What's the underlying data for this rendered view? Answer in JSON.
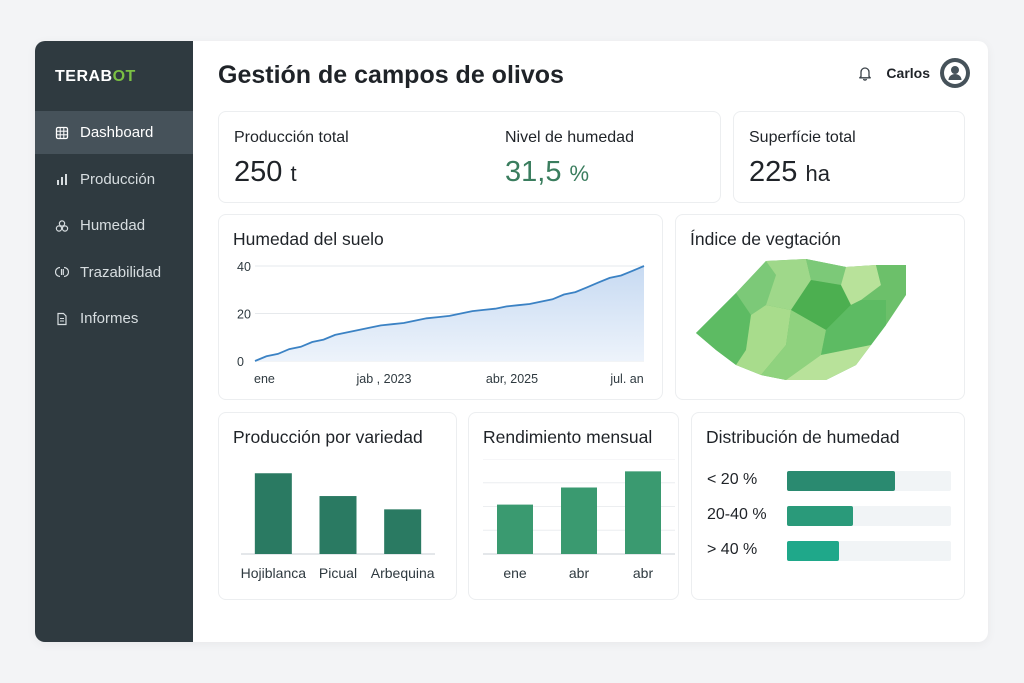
{
  "brand": {
    "logo_main": "TERAB",
    "logo_accent": "OT"
  },
  "sidebar": {
    "items": [
      {
        "label": "Dashboard",
        "icon": "grid-icon",
        "active": true
      },
      {
        "label": "Producción",
        "icon": "bar-chart-icon",
        "active": false
      },
      {
        "label": "Humedad",
        "icon": "drops-icon",
        "active": false
      },
      {
        "label": "Trazabilidad",
        "icon": "trace-icon",
        "active": false
      },
      {
        "label": "Informes",
        "icon": "document-icon",
        "active": false
      }
    ]
  },
  "header": {
    "title": "Gestión de campos de olivos",
    "user": "Carlos"
  },
  "stats": {
    "production": {
      "label": "Producción total",
      "value": "250",
      "unit": "t"
    },
    "humidity": {
      "label": "Nivel de humedad",
      "value": "31,5",
      "unit": "%"
    },
    "surface": {
      "label": "Superfície total",
      "value": "225",
      "unit": "ha"
    }
  },
  "soil_humidity": {
    "title": "Humedad del suelo",
    "chart_data": {
      "type": "area",
      "title": "Humedad del suelo",
      "yticks": [
        "40",
        "20",
        "0"
      ],
      "ylim": [
        0,
        40
      ],
      "xticks": [
        "ene",
        "jab , 2023",
        "abr, 2025",
        "jul. an"
      ],
      "values": [
        0,
        2,
        3,
        5,
        6,
        8,
        9,
        11,
        12,
        13,
        14,
        15,
        15.5,
        16,
        17,
        18,
        18.5,
        19,
        20,
        21,
        21.5,
        22,
        23,
        23.5,
        24,
        25,
        26,
        28,
        29,
        31,
        33,
        35,
        36,
        38,
        40
      ],
      "color": "#3b82c4",
      "fill": "#dbe7f6"
    }
  },
  "vegetation": {
    "title": "Índice de vegtación",
    "colors": [
      "#5dbb63",
      "#7cc978",
      "#9fd88a",
      "#b8e29a",
      "#6cc06a",
      "#4caf50"
    ]
  },
  "variety": {
    "title": "Producción por variedad",
    "chart_data": {
      "type": "bar",
      "categories": [
        "Hojiblanca",
        "Picual",
        "Arbequina"
      ],
      "values": [
        85,
        61,
        47
      ],
      "ylim": [
        0,
        100
      ],
      "color": "#2a7a62"
    }
  },
  "monthly": {
    "title": "Rendimiento mensual",
    "chart_data": {
      "type": "bar",
      "categories": [
        "ene",
        "abr",
        "abr"
      ],
      "values": [
        52,
        70,
        87
      ],
      "ylim": [
        0,
        100
      ],
      "color": "#3a9a70"
    }
  },
  "distribution": {
    "title": "Distribución de humedad",
    "chart_data": {
      "type": "bar",
      "categories": [
        "< 20 %",
        "20-40 %",
        "> 40 %"
      ],
      "values": [
        66,
        40,
        32
      ],
      "ylim": [
        0,
        100
      ],
      "colors": [
        "#2a8a70",
        "#2a9a7a",
        "#1fa88a"
      ]
    }
  }
}
